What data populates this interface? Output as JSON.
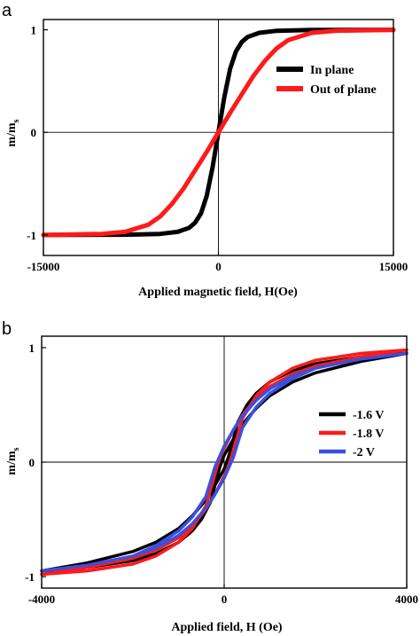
{
  "chart_data": [
    {
      "type": "line",
      "panel_label": "a",
      "xlabel": "Applied magnetic field, H(Oe)",
      "ylabel_main": "m/m",
      "ylabel_sub": "s",
      "xlim": [
        -15000,
        15000
      ],
      "ylim": [
        -1.2,
        1.1
      ],
      "xticks": [
        -15000,
        0,
        15000
      ],
      "xtick_labels": [
        "-15000",
        "0",
        "15000"
      ],
      "yticks": [
        -1,
        0,
        1
      ],
      "ytick_labels": [
        "-1",
        "0",
        "1"
      ],
      "legend_position": "right",
      "series": [
        {
          "name": "In plane",
          "color": "#000000",
          "x": [
            -15000,
            -8000,
            -5000,
            -3500,
            -2500,
            -2000,
            -1500,
            -1000,
            -500,
            0,
            500,
            1000,
            1500,
            2000,
            2500,
            3500,
            5000,
            8000,
            15000
          ],
          "y": [
            -1,
            -0.998,
            -0.99,
            -0.97,
            -0.93,
            -0.88,
            -0.79,
            -0.62,
            -0.34,
            0,
            0.34,
            0.62,
            0.79,
            0.88,
            0.93,
            0.97,
            0.99,
            0.998,
            1
          ]
        },
        {
          "name": "Out of plane",
          "color": "#ff1a1a",
          "x": [
            -15000,
            -10000,
            -8000,
            -6000,
            -5000,
            -4000,
            -3000,
            -2000,
            -1000,
            0,
            1000,
            2000,
            3000,
            4000,
            5000,
            6000,
            8000,
            10000,
            15000
          ],
          "y": [
            -1,
            -0.99,
            -0.97,
            -0.9,
            -0.82,
            -0.7,
            -0.55,
            -0.37,
            -0.19,
            0,
            0.19,
            0.37,
            0.55,
            0.7,
            0.82,
            0.9,
            0.97,
            0.99,
            1
          ]
        }
      ]
    },
    {
      "type": "line",
      "panel_label": "b",
      "xlabel": "Applied field, H (Oe)",
      "ylabel_main": "m/m",
      "ylabel_sub": "s",
      "xlim": [
        -4000,
        4000
      ],
      "ylim": [
        -1.1,
        1.1
      ],
      "xticks": [
        -4000,
        0,
        4000
      ],
      "xtick_labels": [
        "-4000",
        "0",
        "4000"
      ],
      "yticks": [
        -1,
        0,
        1
      ],
      "ytick_labels": [
        "-1",
        "0",
        "1"
      ],
      "legend_position": "right",
      "series": [
        {
          "name": "-1.6 V",
          "color": "#000000",
          "x": [
            -4000,
            -3000,
            -2000,
            -1500,
            -1000,
            -700,
            -400,
            -200,
            0,
            100,
            200,
            300,
            500,
            700,
            1000,
            1500,
            2000,
            3000,
            4000,
            4000,
            3000,
            2000,
            1500,
            1000,
            700,
            400,
            200,
            0,
            -100,
            -200,
            -300,
            -500,
            -700,
            -1000,
            -1500,
            -2000,
            -3000,
            -4000
          ],
          "y": [
            -0.95,
            -0.88,
            -0.78,
            -0.7,
            -0.58,
            -0.47,
            -0.33,
            -0.2,
            -0.06,
            0.05,
            0.2,
            0.35,
            0.5,
            0.6,
            0.7,
            0.8,
            0.86,
            0.92,
            0.95,
            0.95,
            0.88,
            0.78,
            0.7,
            0.58,
            0.47,
            0.33,
            0.2,
            0.06,
            -0.05,
            -0.2,
            -0.35,
            -0.5,
            -0.6,
            -0.7,
            -0.8,
            -0.86,
            -0.92,
            -0.95
          ]
        },
        {
          "name": "-1.8 V",
          "color": "#ff1a1a",
          "x": [
            -4000,
            -3000,
            -2000,
            -1500,
            -1000,
            -700,
            -400,
            -200,
            0,
            100,
            200,
            400,
            700,
            1000,
            1500,
            2000,
            3000,
            4000,
            4000,
            3000,
            2000,
            1500,
            1000,
            700,
            400,
            200,
            0,
            -100,
            -200,
            -400,
            -700,
            -1000,
            -1500,
            -2000,
            -3000,
            -4000
          ],
          "y": [
            -0.98,
            -0.92,
            -0.84,
            -0.77,
            -0.66,
            -0.56,
            -0.41,
            -0.28,
            -0.12,
            -0.03,
            0.1,
            0.38,
            0.58,
            0.7,
            0.82,
            0.89,
            0.95,
            0.98,
            0.98,
            0.92,
            0.84,
            0.77,
            0.66,
            0.56,
            0.41,
            0.28,
            0.12,
            0.03,
            -0.1,
            -0.38,
            -0.58,
            -0.7,
            -0.82,
            -0.89,
            -0.95,
            -0.98
          ]
        },
        {
          "name": "-2 V",
          "color": "#3a4fe0",
          "x": [
            -4000,
            -3000,
            -2000,
            -1500,
            -1000,
            -700,
            -400,
            -200,
            0,
            200,
            400,
            700,
            1000,
            1500,
            2000,
            3000,
            4000,
            4000,
            3000,
            2000,
            1500,
            1000,
            700,
            400,
            200,
            0,
            -200,
            -400,
            -700,
            -1000,
            -1500,
            -2000,
            -3000,
            -4000
          ],
          "y": [
            -0.95,
            -0.9,
            -0.82,
            -0.75,
            -0.64,
            -0.54,
            -0.4,
            -0.28,
            -0.14,
            0.04,
            0.3,
            0.48,
            0.6,
            0.73,
            0.82,
            0.9,
            0.95,
            0.95,
            0.9,
            0.82,
            0.75,
            0.64,
            0.54,
            0.4,
            0.28,
            0.14,
            -0.04,
            -0.3,
            -0.48,
            -0.6,
            -0.73,
            -0.82,
            -0.9,
            -0.95
          ]
        }
      ]
    }
  ]
}
